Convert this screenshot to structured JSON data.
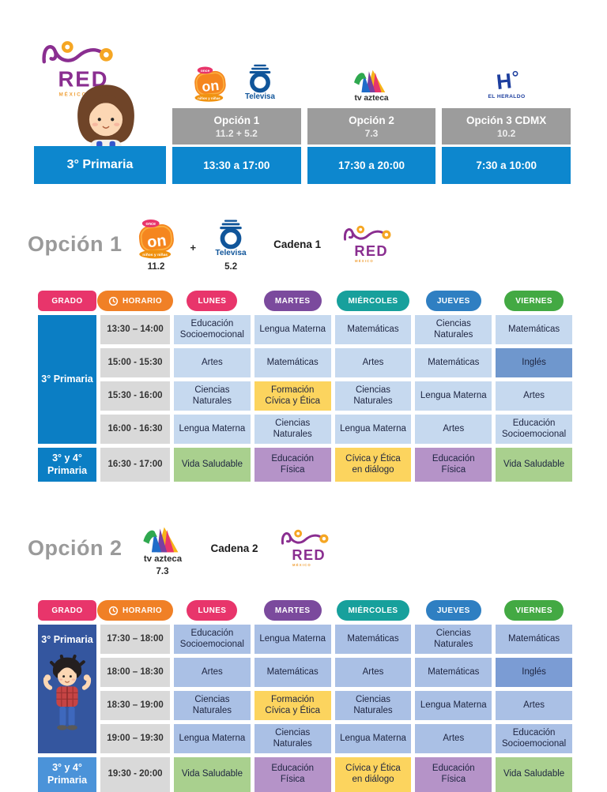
{
  "colors": {
    "accent_blue": "#0d87ce",
    "table1_grade_blue": "#0b7ec4",
    "table2_grade_navy": "#34569f",
    "table2_grade_light_blue": "#4b93d9",
    "option_box_gray": "#9c9c9c",
    "time_cell_gray": "#d9d9d9",
    "yellow": "#fcd45e",
    "green": "#a9d08e",
    "purple": "#b593c8",
    "badge_pink": "#e8356b",
    "badge_orange": "#f08026",
    "badge_purple": "#7b4a9d",
    "badge_teal": "#17a09c",
    "badge_blue": "#2f7fc2",
    "badge_green": "#43a943",
    "red_logo_purple": "#8a2e90",
    "red_logo_orange": "#f0a13a",
    "televisa_blue": "#10559a",
    "heraldo_blue": "#1d3e9e"
  },
  "logos": {
    "red_mexico": {
      "text": "RED",
      "subtext": "M É X I C O"
    },
    "once": {
      "label": "on",
      "top": "once",
      "bottom": "niños y niñas"
    },
    "televisa": {
      "label": "Televisa"
    },
    "tv_azteca": {
      "label": "tv azteca"
    },
    "el_heraldo": {
      "letter": "H",
      "label": "EL HERALDO"
    }
  },
  "top": {
    "grade_banner": "3° Primaria",
    "options": [
      {
        "name": "Opción 1",
        "channels": "11.2  +  5.2",
        "time": "13:30 a 17:00"
      },
      {
        "name": "Opción 2",
        "channels": "7.3",
        "time": "17:30 a 20:00"
      },
      {
        "name": "Opción 3 CDMX",
        "channels": "10.2",
        "time": "7:30 a 10:00"
      }
    ]
  },
  "sections": [
    {
      "title": "Opción 1",
      "numbers": [
        "11.2",
        "5.2"
      ],
      "plus": "+",
      "cadena": "Cadena 1",
      "table": {
        "headers": [
          {
            "label": "GRADO",
            "color": "#e8356b",
            "shape": "rect"
          },
          {
            "label": "HORARIO",
            "color": "#f08026",
            "icon": "clock-icon"
          },
          {
            "label": "LUNES",
            "color": "#e8356b"
          },
          {
            "label": "MARTES",
            "color": "#7b4a9d"
          },
          {
            "label": "MIÉRCOLES",
            "color": "#17a09c"
          },
          {
            "label": "JUEVES",
            "color": "#2f7fc2"
          },
          {
            "label": "VIERNES",
            "color": "#43a943"
          }
        ],
        "grade_main": "3° Primaria",
        "grade_last": "3° y 4° Primaria",
        "palette": {
          "cell": "#c6d9ef",
          "english": "#6f97cd",
          "grade_main_bg": "#0b7ec4",
          "grade_last_bg": "#0b7ec4",
          "show_avatar": false
        },
        "rows": [
          {
            "time": "13:30 – 14:00",
            "subjects": [
              {
                "text": "Educación Socioemocional"
              },
              {
                "text": "Lengua Materna"
              },
              {
                "text": "Matemáticas"
              },
              {
                "text": "Ciencias Naturales"
              },
              {
                "text": "Matemáticas"
              }
            ]
          },
          {
            "time": "15:00 - 15:30",
            "subjects": [
              {
                "text": "Artes"
              },
              {
                "text": "Matemáticas"
              },
              {
                "text": "Artes"
              },
              {
                "text": "Matemáticas"
              },
              {
                "text": "Inglés",
                "style": "english"
              }
            ]
          },
          {
            "time": "15:30 - 16:00",
            "subjects": [
              {
                "text": "Ciencias Naturales"
              },
              {
                "text": "Formación Cívica y Ética",
                "style": "yellow"
              },
              {
                "text": "Ciencias Naturales"
              },
              {
                "text": "Lengua Materna"
              },
              {
                "text": "Artes"
              }
            ]
          },
          {
            "time": "16:00 - 16:30",
            "subjects": [
              {
                "text": "Lengua Materna"
              },
              {
                "text": "Ciencias Naturales"
              },
              {
                "text": "Lengua Materna"
              },
              {
                "text": "Artes"
              },
              {
                "text": "Educación Socioemocional"
              }
            ]
          },
          {
            "time": "16:30 - 17:00",
            "grade": "last",
            "subjects": [
              {
                "text": "Vida Saludable",
                "style": "green"
              },
              {
                "text": "Educación Física",
                "style": "purple"
              },
              {
                "text": "Cívica y Ética en diálogo",
                "style": "yellow"
              },
              {
                "text": "Educación Física",
                "style": "purple"
              },
              {
                "text": "Vida Saludable",
                "style": "green"
              }
            ]
          }
        ]
      }
    },
    {
      "title": "Opción 2",
      "numbers": [
        "7.3"
      ],
      "cadena": "Cadena 2",
      "table": {
        "headers": [
          {
            "label": "GRADO",
            "color": "#e8356b",
            "shape": "rect"
          },
          {
            "label": "HORARIO",
            "color": "#f08026",
            "icon": "clock-icon"
          },
          {
            "label": "LUNES",
            "color": "#e8356b"
          },
          {
            "label": "MARTES",
            "color": "#7b4a9d"
          },
          {
            "label": "MIÉRCOLES",
            "color": "#17a09c"
          },
          {
            "label": "JUEVES",
            "color": "#2f7fc2"
          },
          {
            "label": "VIERNES",
            "color": "#43a943"
          }
        ],
        "grade_main": "3° Primaria",
        "grade_last": "3° y 4° Primaria",
        "palette": {
          "cell": "#aac0e5",
          "english": "#7b9cd4",
          "grade_main_bg": "#34569f",
          "grade_last_bg": "#4b93d9",
          "show_avatar": true
        },
        "rows": [
          {
            "time": "17:30 – 18:00",
            "subjects": [
              {
                "text": "Educación Socioemocional"
              },
              {
                "text": "Lengua Materna"
              },
              {
                "text": "Matemáticas"
              },
              {
                "text": "Ciencias Naturales"
              },
              {
                "text": "Matemáticas"
              }
            ]
          },
          {
            "time": "18:00 – 18:30",
            "subjects": [
              {
                "text": "Artes"
              },
              {
                "text": "Matemáticas"
              },
              {
                "text": "Artes"
              },
              {
                "text": "Matemáticas"
              },
              {
                "text": "Inglés",
                "style": "english"
              }
            ]
          },
          {
            "time": "18:30 – 19:00",
            "subjects": [
              {
                "text": "Ciencias Naturales"
              },
              {
                "text": "Formación Cívica y Ética",
                "style": "yellow"
              },
              {
                "text": "Ciencias Naturales"
              },
              {
                "text": "Lengua Materna"
              },
              {
                "text": "Artes"
              }
            ]
          },
          {
            "time": "19:00 – 19:30",
            "subjects": [
              {
                "text": "Lengua Materna"
              },
              {
                "text": "Ciencias Naturales"
              },
              {
                "text": "Lengua Materna"
              },
              {
                "text": "Artes"
              },
              {
                "text": "Educación Socioemocional"
              }
            ]
          },
          {
            "time": "19:30 - 20:00",
            "grade": "last",
            "subjects": [
              {
                "text": "Vida Saludable",
                "style": "green"
              },
              {
                "text": "Educación Física",
                "style": "purple"
              },
              {
                "text": "Cívica y Ética en diálogo",
                "style": "yellow"
              },
              {
                "text": "Educación Física",
                "style": "purple"
              },
              {
                "text": "Vida Saludable",
                "style": "green"
              }
            ]
          }
        ]
      }
    }
  ]
}
